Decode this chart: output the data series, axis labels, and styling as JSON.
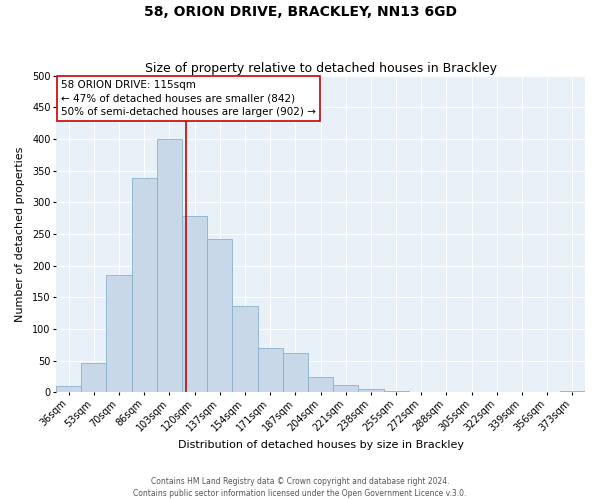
{
  "title": "58, ORION DRIVE, BRACKLEY, NN13 6GD",
  "subtitle": "Size of property relative to detached houses in Brackley",
  "xlabel": "Distribution of detached houses by size in Brackley",
  "ylabel": "Number of detached properties",
  "bar_color": "#c8d8e8",
  "bar_edgecolor": "#8ab0cc",
  "background_color": "#ffffff",
  "plot_bg_color": "#e8f0f8",
  "grid_color": "#ffffff",
  "bin_labels": [
    "36sqm",
    "53sqm",
    "70sqm",
    "86sqm",
    "103sqm",
    "120sqm",
    "137sqm",
    "154sqm",
    "171sqm",
    "187sqm",
    "204sqm",
    "221sqm",
    "238sqm",
    "255sqm",
    "272sqm",
    "288sqm",
    "305sqm",
    "322sqm",
    "339sqm",
    "356sqm",
    "373sqm"
  ],
  "bar_heights": [
    10,
    47,
    185,
    338,
    400,
    278,
    242,
    137,
    70,
    62,
    25,
    12,
    5,
    3,
    0,
    0,
    0,
    0,
    0,
    0,
    3
  ],
  "ylim": [
    0,
    500
  ],
  "yticks": [
    0,
    50,
    100,
    150,
    200,
    250,
    300,
    350,
    400,
    450,
    500
  ],
  "vline_color": "#cc0000",
  "vline_x_index": 4.65,
  "annotation_title": "58 ORION DRIVE: 115sqm",
  "annotation_line1": "← 47% of detached houses are smaller (842)",
  "annotation_line2": "50% of semi-detached houses are larger (902) →",
  "footer_line1": "Contains HM Land Registry data © Crown copyright and database right 2024.",
  "footer_line2": "Contains public sector information licensed under the Open Government Licence v.3.0.",
  "title_fontsize": 10,
  "subtitle_fontsize": 9,
  "axis_label_fontsize": 8,
  "tick_fontsize": 7,
  "annotation_fontsize": 7.5,
  "footer_fontsize": 5.5
}
